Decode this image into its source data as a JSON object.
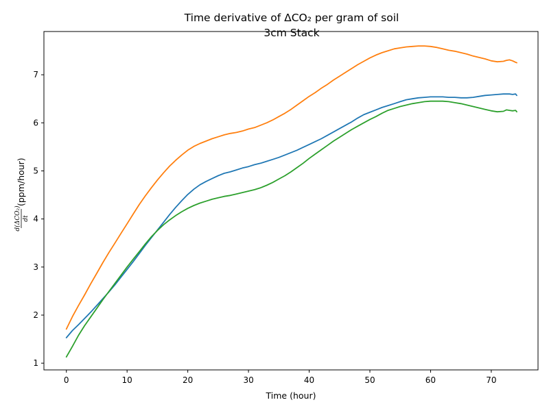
{
  "chart_data": {
    "type": "line",
    "title": "Time derivative of ΔCO₂ per gram of soil",
    "subtitle": "3cm Stack",
    "xlabel": "Time (hour)",
    "ylabel_fraction_numerator": "d(ΔCO₂)",
    "ylabel_fraction_denominator": "dt",
    "ylabel_unit": "(ppm/hour)",
    "xlim": [
      -3.7,
      77.7
    ],
    "ylim": [
      0.86,
      7.9
    ],
    "xticks": [
      0,
      10,
      20,
      30,
      40,
      50,
      60,
      70
    ],
    "yticks": [
      1,
      2,
      3,
      4,
      5,
      6,
      7
    ],
    "grid": false,
    "x": [
      0,
      1,
      2,
      3,
      4,
      5,
      6,
      7,
      8,
      9,
      10,
      11,
      12,
      13,
      14,
      15,
      16,
      17,
      18,
      19,
      20,
      21,
      22,
      23,
      24,
      25,
      26,
      27,
      28,
      29,
      30,
      31,
      32,
      33,
      34,
      35,
      36,
      37,
      38,
      39,
      40,
      41,
      42,
      43,
      44,
      45,
      46,
      47,
      48,
      49,
      50,
      51,
      52,
      53,
      54,
      55,
      56,
      57,
      58,
      59,
      60,
      61,
      62,
      63,
      64,
      65,
      66,
      67,
      68,
      69,
      70,
      71,
      72,
      72.5,
      73,
      73.5,
      74,
      74.2
    ],
    "series": [
      {
        "color": "#1f77b4",
        "values": [
          1.53,
          1.68,
          1.8,
          1.93,
          2.06,
          2.2,
          2.34,
          2.48,
          2.63,
          2.79,
          2.95,
          3.11,
          3.28,
          3.45,
          3.61,
          3.77,
          3.93,
          4.09,
          4.24,
          4.38,
          4.51,
          4.62,
          4.71,
          4.78,
          4.84,
          4.9,
          4.95,
          4.98,
          5.02,
          5.06,
          5.09,
          5.13,
          5.16,
          5.2,
          5.24,
          5.28,
          5.33,
          5.38,
          5.43,
          5.49,
          5.55,
          5.61,
          5.67,
          5.74,
          5.81,
          5.88,
          5.95,
          6.02,
          6.1,
          6.17,
          6.22,
          6.27,
          6.32,
          6.36,
          6.4,
          6.44,
          6.48,
          6.5,
          6.52,
          6.53,
          6.54,
          6.54,
          6.54,
          6.53,
          6.53,
          6.52,
          6.52,
          6.53,
          6.55,
          6.57,
          6.58,
          6.59,
          6.6,
          6.6,
          6.6,
          6.59,
          6.6,
          6.57
        ]
      },
      {
        "color": "#ff7f0e",
        "values": [
          1.71,
          1.97,
          2.2,
          2.42,
          2.65,
          2.87,
          3.09,
          3.3,
          3.5,
          3.7,
          3.9,
          4.1,
          4.3,
          4.48,
          4.65,
          4.81,
          4.96,
          5.1,
          5.22,
          5.33,
          5.43,
          5.51,
          5.57,
          5.62,
          5.67,
          5.71,
          5.75,
          5.78,
          5.8,
          5.83,
          5.87,
          5.9,
          5.95,
          6.0,
          6.06,
          6.13,
          6.2,
          6.28,
          6.37,
          6.46,
          6.55,
          6.63,
          6.72,
          6.8,
          6.89,
          6.97,
          7.05,
          7.13,
          7.21,
          7.28,
          7.35,
          7.41,
          7.46,
          7.5,
          7.54,
          7.56,
          7.58,
          7.59,
          7.6,
          7.6,
          7.59,
          7.57,
          7.54,
          7.51,
          7.49,
          7.46,
          7.43,
          7.39,
          7.36,
          7.33,
          7.29,
          7.27,
          7.28,
          7.3,
          7.31,
          7.29,
          7.26,
          7.25
        ]
      },
      {
        "color": "#2ca02c",
        "values": [
          1.13,
          1.35,
          1.58,
          1.78,
          1.96,
          2.14,
          2.32,
          2.49,
          2.66,
          2.83,
          3.0,
          3.16,
          3.32,
          3.48,
          3.63,
          3.76,
          3.88,
          3.98,
          4.07,
          4.15,
          4.22,
          4.28,
          4.33,
          4.37,
          4.41,
          4.44,
          4.47,
          4.49,
          4.52,
          4.55,
          4.58,
          4.61,
          4.65,
          4.7,
          4.76,
          4.83,
          4.9,
          4.98,
          5.07,
          5.16,
          5.26,
          5.35,
          5.44,
          5.53,
          5.62,
          5.7,
          5.78,
          5.86,
          5.93,
          6.0,
          6.07,
          6.13,
          6.2,
          6.26,
          6.3,
          6.34,
          6.37,
          6.4,
          6.42,
          6.44,
          6.45,
          6.45,
          6.45,
          6.44,
          6.42,
          6.4,
          6.37,
          6.34,
          6.31,
          6.28,
          6.25,
          6.23,
          6.24,
          6.27,
          6.26,
          6.25,
          6.26,
          6.23
        ]
      }
    ]
  }
}
